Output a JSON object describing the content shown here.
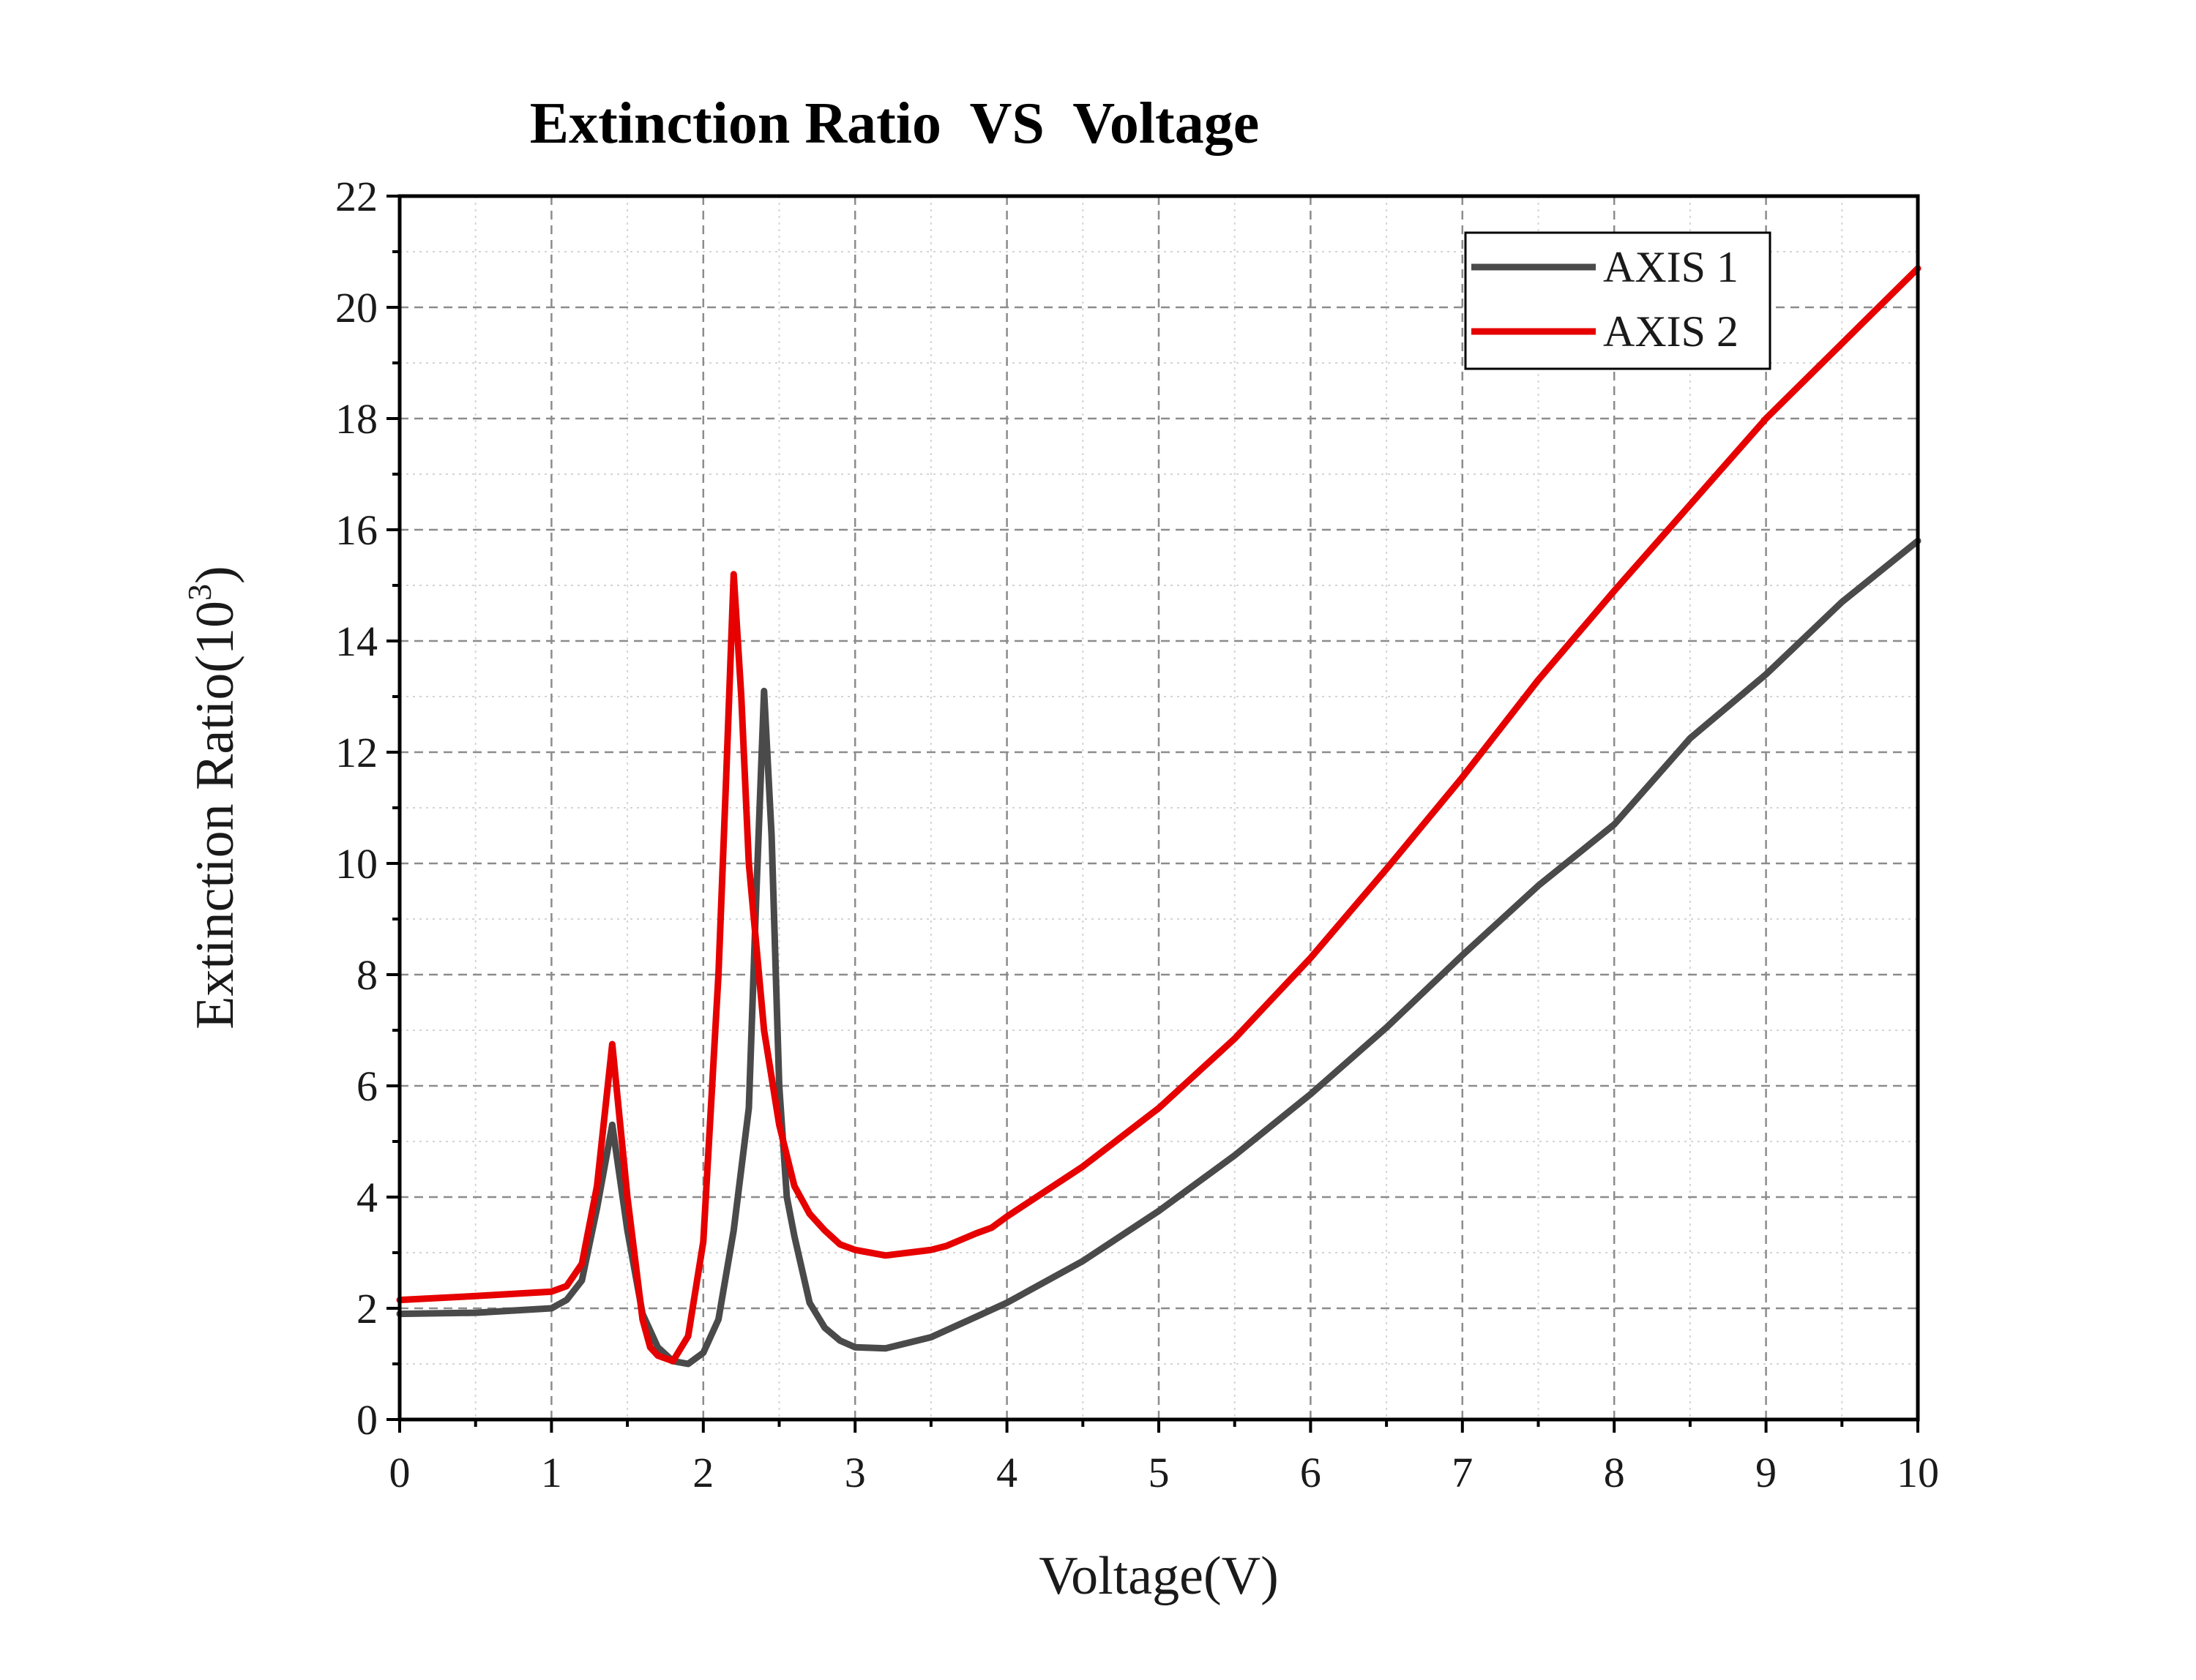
{
  "chart_data": {
    "type": "line",
    "title": "Extinction Ratio  VS  Voltage",
    "xlabel": "Voltage(V)",
    "ylabel": "Extinction Ratio(10",
    "ylabel_sup": "3",
    "ylabel_close": ")",
    "xlim": [
      0,
      10
    ],
    "ylim": [
      0,
      22
    ],
    "xticks": [
      "0",
      "1",
      "2",
      "3",
      "4",
      "5",
      "6",
      "7",
      "8",
      "9",
      "10"
    ],
    "yticks": [
      "0",
      "2",
      "4",
      "6",
      "8",
      "10",
      "12",
      "14",
      "16",
      "18",
      "20",
      "22"
    ],
    "grid": true,
    "legend_position": "top-right",
    "series": [
      {
        "name": "AXIS 1",
        "color": "#4a4a4a",
        "points": [
          [
            0,
            1.9
          ],
          [
            0.5,
            1.92
          ],
          [
            1.0,
            2.0
          ],
          [
            1.1,
            2.15
          ],
          [
            1.2,
            2.5
          ],
          [
            1.3,
            3.8
          ],
          [
            1.4,
            5.3
          ],
          [
            1.5,
            3.4
          ],
          [
            1.6,
            1.9
          ],
          [
            1.7,
            1.3
          ],
          [
            1.8,
            1.05
          ],
          [
            1.9,
            1.0
          ],
          [
            2.0,
            1.2
          ],
          [
            2.1,
            1.8
          ],
          [
            2.2,
            3.4
          ],
          [
            2.3,
            5.6
          ],
          [
            2.35,
            9.5
          ],
          [
            2.4,
            13.1
          ],
          [
            2.45,
            10.5
          ],
          [
            2.5,
            6.0
          ],
          [
            2.55,
            4.0
          ],
          [
            2.6,
            3.3
          ],
          [
            2.7,
            2.1
          ],
          [
            2.8,
            1.65
          ],
          [
            2.9,
            1.42
          ],
          [
            3.0,
            1.3
          ],
          [
            3.2,
            1.28
          ],
          [
            3.5,
            1.48
          ],
          [
            3.8,
            1.85
          ],
          [
            4.0,
            2.1
          ],
          [
            4.5,
            2.85
          ],
          [
            5.0,
            3.75
          ],
          [
            5.5,
            4.75
          ],
          [
            6.0,
            5.85
          ],
          [
            6.5,
            7.05
          ],
          [
            7.0,
            8.35
          ],
          [
            7.5,
            9.6
          ],
          [
            8.0,
            10.7
          ],
          [
            8.5,
            12.25
          ],
          [
            9.0,
            13.4
          ],
          [
            9.5,
            14.7
          ],
          [
            10.0,
            15.8
          ]
        ]
      },
      {
        "name": "AXIS 2",
        "color": "#e60000",
        "points": [
          [
            0,
            2.15
          ],
          [
            0.5,
            2.22
          ],
          [
            1.0,
            2.3
          ],
          [
            1.1,
            2.4
          ],
          [
            1.2,
            2.8
          ],
          [
            1.3,
            4.2
          ],
          [
            1.4,
            6.75
          ],
          [
            1.5,
            4.0
          ],
          [
            1.6,
            1.8
          ],
          [
            1.65,
            1.3
          ],
          [
            1.7,
            1.15
          ],
          [
            1.8,
            1.05
          ],
          [
            1.9,
            1.5
          ],
          [
            2.0,
            3.2
          ],
          [
            2.1,
            8.0
          ],
          [
            2.15,
            11.5
          ],
          [
            2.2,
            15.2
          ],
          [
            2.25,
            13.0
          ],
          [
            2.3,
            10.0
          ],
          [
            2.4,
            7.0
          ],
          [
            2.5,
            5.3
          ],
          [
            2.6,
            4.2
          ],
          [
            2.7,
            3.7
          ],
          [
            2.8,
            3.4
          ],
          [
            2.9,
            3.15
          ],
          [
            3.0,
            3.05
          ],
          [
            3.2,
            2.95
          ],
          [
            3.5,
            3.05
          ],
          [
            3.6,
            3.12
          ],
          [
            3.8,
            3.35
          ],
          [
            3.9,
            3.45
          ],
          [
            4.0,
            3.65
          ],
          [
            4.5,
            4.55
          ],
          [
            5.0,
            5.6
          ],
          [
            5.5,
            6.85
          ],
          [
            6.0,
            8.3
          ],
          [
            6.5,
            9.9
          ],
          [
            7.0,
            11.55
          ],
          [
            7.5,
            13.3
          ],
          [
            8.0,
            14.9
          ],
          [
            8.5,
            16.45
          ],
          [
            9.0,
            18.0
          ],
          [
            9.5,
            19.35
          ],
          [
            10.0,
            20.7
          ]
        ]
      }
    ]
  }
}
